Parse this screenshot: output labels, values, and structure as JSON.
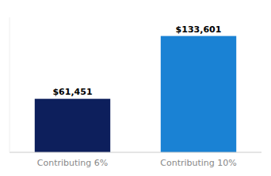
{
  "chart_data": {
    "type": "bar",
    "categories": [
      "Contributing 6%",
      "Contributing 10%"
    ],
    "values": [
      61451,
      133601
    ],
    "value_labels": [
      "$61,451",
      "$133,601"
    ],
    "colors": [
      "#0d1f5c",
      "#1a82d4"
    ],
    "ylim": [
      0,
      155000
    ],
    "data_labels": true,
    "tick_labels": "x",
    "grid": false
  }
}
